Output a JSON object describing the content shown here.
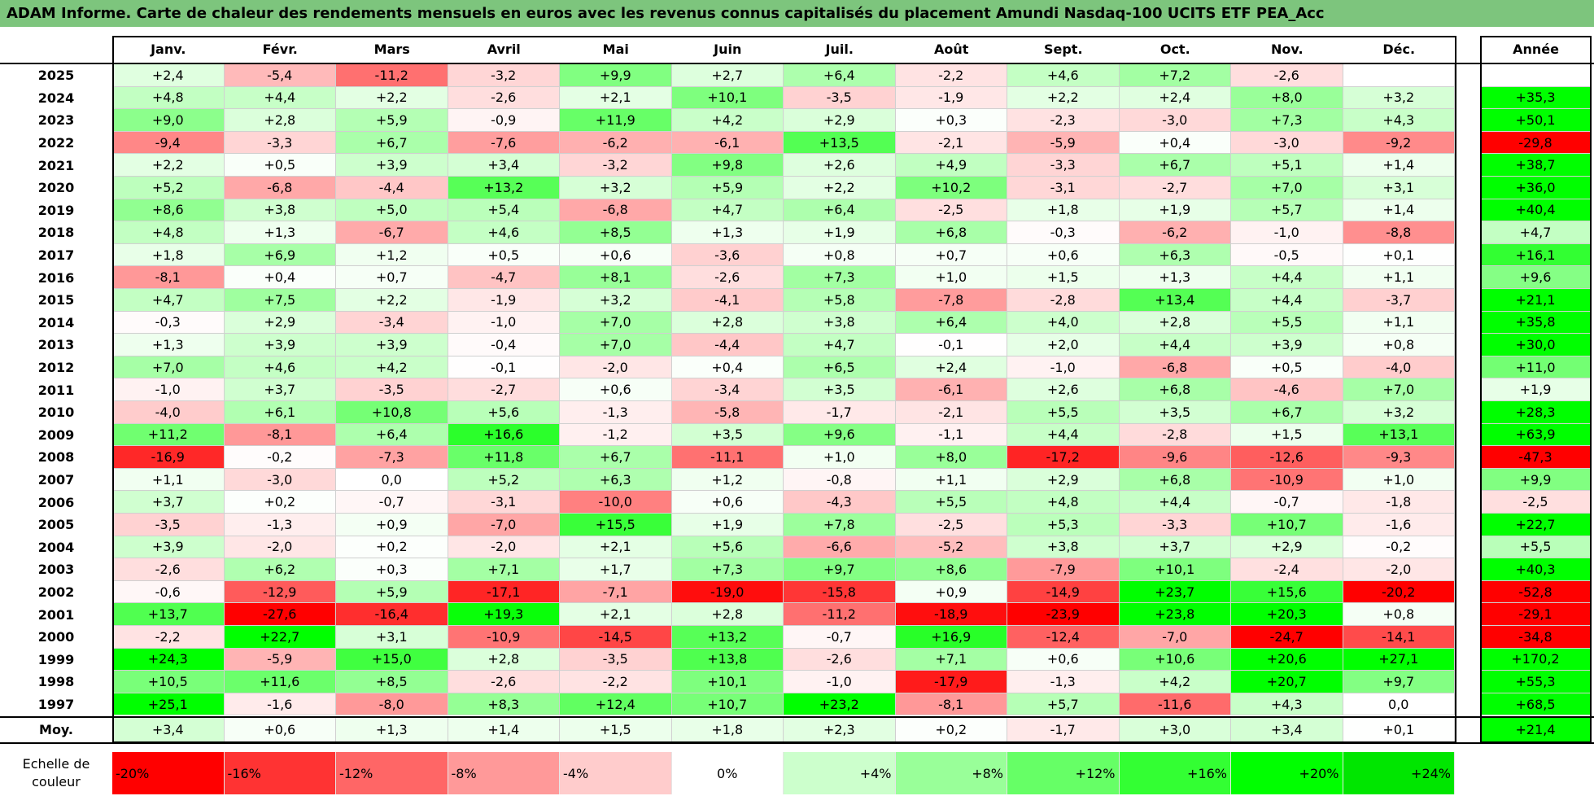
{
  "title": "ADAM Informe. Carte de chaleur des rendements mensuels en euros avec les revenus connus capitalisés du placement Amundi Nasdaq-100 UCITS ETF PEA_Acc",
  "chart_data": {
    "type": "heatmap",
    "columns": [
      "Janv.",
      "Févr.",
      "Mars",
      "Avril",
      "Mai",
      "Juin",
      "Juil.",
      "Août",
      "Sept.",
      "Oct.",
      "Nov.",
      "Déc."
    ],
    "annual_header": "Année",
    "rows": [
      {
        "year": "2025",
        "values": [
          "+2,4",
          "-5,4",
          "-11,2",
          "-3,2",
          "+9,9",
          "+2,7",
          "+6,4",
          "-2,2",
          "+4,6",
          "+7,2",
          "-2,6",
          ""
        ],
        "annual": ""
      },
      {
        "year": "2024",
        "values": [
          "+4,8",
          "+4,4",
          "+2,2",
          "-2,6",
          "+2,1",
          "+10,1",
          "-3,5",
          "-1,9",
          "+2,2",
          "+2,4",
          "+8,0",
          "+3,2"
        ],
        "annual": "+35,3"
      },
      {
        "year": "2023",
        "values": [
          "+9,0",
          "+2,8",
          "+5,9",
          "-0,9",
          "+11,9",
          "+4,2",
          "+2,9",
          "+0,3",
          "-2,3",
          "-3,0",
          "+7,3",
          "+4,3"
        ],
        "annual": "+50,1"
      },
      {
        "year": "2022",
        "values": [
          "-9,4",
          "-3,3",
          "+6,7",
          "-7,6",
          "-6,2",
          "-6,1",
          "+13,5",
          "-2,1",
          "-5,9",
          "+0,4",
          "-3,0",
          "-9,2"
        ],
        "annual": "-29,8"
      },
      {
        "year": "2021",
        "values": [
          "+2,2",
          "+0,5",
          "+3,9",
          "+3,4",
          "-3,2",
          "+9,8",
          "+2,6",
          "+4,9",
          "-3,3",
          "+6,7",
          "+5,1",
          "+1,4"
        ],
        "annual": "+38,7"
      },
      {
        "year": "2020",
        "values": [
          "+5,2",
          "-6,8",
          "-4,4",
          "+13,2",
          "+3,2",
          "+5,9",
          "+2,2",
          "+10,2",
          "-3,1",
          "-2,7",
          "+7,0",
          "+3,1"
        ],
        "annual": "+36,0"
      },
      {
        "year": "2019",
        "values": [
          "+8,6",
          "+3,8",
          "+5,0",
          "+5,4",
          "-6,8",
          "+4,7",
          "+6,4",
          "-2,5",
          "+1,8",
          "+1,9",
          "+5,7",
          "+1,4"
        ],
        "annual": "+40,4"
      },
      {
        "year": "2018",
        "values": [
          "+4,8",
          "+1,3",
          "-6,7",
          "+4,6",
          "+8,5",
          "+1,3",
          "+1,9",
          "+6,8",
          "-0,3",
          "-6,2",
          "-1,0",
          "-8,8"
        ],
        "annual": "+4,7"
      },
      {
        "year": "2017",
        "values": [
          "+1,8",
          "+6,9",
          "+1,2",
          "+0,5",
          "+0,6",
          "-3,6",
          "+0,8",
          "+0,7",
          "+0,6",
          "+6,3",
          "-0,5",
          "+0,1"
        ],
        "annual": "+16,1"
      },
      {
        "year": "2016",
        "values": [
          "-8,1",
          "+0,4",
          "+0,7",
          "-4,7",
          "+8,1",
          "-2,6",
          "+7,3",
          "+1,0",
          "+1,5",
          "+1,3",
          "+4,4",
          "+1,1"
        ],
        "annual": "+9,6"
      },
      {
        "year": "2015",
        "values": [
          "+4,7",
          "+7,5",
          "+2,2",
          "-1,9",
          "+3,2",
          "-4,1",
          "+5,8",
          "-7,8",
          "-2,8",
          "+13,4",
          "+4,4",
          "-3,7"
        ],
        "annual": "+21,1"
      },
      {
        "year": "2014",
        "values": [
          "-0,3",
          "+2,9",
          "-3,4",
          "-1,0",
          "+7,0",
          "+2,8",
          "+3,8",
          "+6,4",
          "+4,0",
          "+2,8",
          "+5,5",
          "+1,1"
        ],
        "annual": "+35,8"
      },
      {
        "year": "2013",
        "values": [
          "+1,3",
          "+3,9",
          "+3,9",
          "-0,4",
          "+7,0",
          "-4,4",
          "+4,7",
          "-0,1",
          "+2,0",
          "+4,4",
          "+3,9",
          "+0,8"
        ],
        "annual": "+30,0"
      },
      {
        "year": "2012",
        "values": [
          "+7,0",
          "+4,6",
          "+4,2",
          "-0,1",
          "-2,0",
          "+0,4",
          "+6,5",
          "+2,4",
          "-1,0",
          "-6,8",
          "+0,5",
          "-4,0"
        ],
        "annual": "+11,0"
      },
      {
        "year": "2011",
        "values": [
          "-1,0",
          "+3,7",
          "-3,5",
          "-2,7",
          "+0,6",
          "-3,4",
          "+3,5",
          "-6,1",
          "+2,6",
          "+6,8",
          "-4,6",
          "+7,0"
        ],
        "annual": "+1,9"
      },
      {
        "year": "2010",
        "values": [
          "-4,0",
          "+6,1",
          "+10,8",
          "+5,6",
          "-1,3",
          "-5,8",
          "-1,7",
          "-2,1",
          "+5,5",
          "+3,5",
          "+6,7",
          "+3,2"
        ],
        "annual": "+28,3"
      },
      {
        "year": "2009",
        "values": [
          "+11,2",
          "-8,1",
          "+6,4",
          "+16,6",
          "-1,2",
          "+3,5",
          "+9,6",
          "-1,1",
          "+4,4",
          "-2,8",
          "+1,5",
          "+13,1"
        ],
        "annual": "+63,9"
      },
      {
        "year": "2008",
        "values": [
          "-16,9",
          "-0,2",
          "-7,3",
          "+11,8",
          "+6,7",
          "-11,1",
          "+1,0",
          "+8,0",
          "-17,2",
          "-9,6",
          "-12,6",
          "-9,3"
        ],
        "annual": "-47,3"
      },
      {
        "year": "2007",
        "values": [
          "+1,1",
          "-3,0",
          "0,0",
          "+5,2",
          "+6,3",
          "+1,2",
          "-0,8",
          "+1,1",
          "+2,9",
          "+6,8",
          "-10,9",
          "+1,0"
        ],
        "annual": "+9,9"
      },
      {
        "year": "2006",
        "values": [
          "+3,7",
          "+0,2",
          "-0,7",
          "-3,1",
          "-10,0",
          "+0,6",
          "-4,3",
          "+5,5",
          "+4,8",
          "+4,4",
          "-0,7",
          "-1,8"
        ],
        "annual": "-2,5"
      },
      {
        "year": "2005",
        "values": [
          "-3,5",
          "-1,3",
          "+0,9",
          "-7,0",
          "+15,5",
          "+1,9",
          "+7,8",
          "-2,5",
          "+5,3",
          "-3,3",
          "+10,7",
          "-1,6"
        ],
        "annual": "+22,7"
      },
      {
        "year": "2004",
        "values": [
          "+3,9",
          "-2,0",
          "+0,2",
          "-2,0",
          "+2,1",
          "+5,6",
          "-6,6",
          "-5,2",
          "+3,8",
          "+3,7",
          "+2,9",
          "-0,2"
        ],
        "annual": "+5,5"
      },
      {
        "year": "2003",
        "values": [
          "-2,6",
          "+6,2",
          "+0,3",
          "+7,1",
          "+1,7",
          "+7,3",
          "+9,7",
          "+8,6",
          "-7,9",
          "+10,1",
          "-2,4",
          "-2,0"
        ],
        "annual": "+40,3"
      },
      {
        "year": "2002",
        "values": [
          "-0,6",
          "-12,9",
          "+5,9",
          "-17,1",
          "-7,1",
          "-19,0",
          "-15,8",
          "+0,9",
          "-14,9",
          "+23,7",
          "+15,6",
          "-20,2"
        ],
        "annual": "-52,8"
      },
      {
        "year": "2001",
        "values": [
          "+13,7",
          "-27,6",
          "-16,4",
          "+19,3",
          "+2,1",
          "+2,8",
          "-11,2",
          "-18,9",
          "-23,9",
          "+23,8",
          "+20,3",
          "+0,8"
        ],
        "annual": "-29,1"
      },
      {
        "year": "2000",
        "values": [
          "-2,2",
          "+22,7",
          "+3,1",
          "-10,9",
          "-14,5",
          "+13,2",
          "-0,7",
          "+16,9",
          "-12,4",
          "-7,0",
          "-24,7",
          "-14,1"
        ],
        "annual": "-34,8"
      },
      {
        "year": "1999",
        "values": [
          "+24,3",
          "-5,9",
          "+15,0",
          "+2,8",
          "-3,5",
          "+13,8",
          "-2,6",
          "+7,1",
          "+0,6",
          "+10,6",
          "+20,6",
          "+27,1"
        ],
        "annual": "+170,2"
      },
      {
        "year": "1998",
        "values": [
          "+10,5",
          "+11,6",
          "+8,5",
          "-2,6",
          "-2,2",
          "+10,1",
          "-1,0",
          "-17,9",
          "-1,3",
          "+4,2",
          "+20,7",
          "+9,7"
        ],
        "annual": "+55,3"
      },
      {
        "year": "1997",
        "values": [
          "+25,1",
          "-1,6",
          "-8,0",
          "+8,3",
          "+12,4",
          "+10,7",
          "+23,2",
          "-8,1",
          "+5,7",
          "-11,6",
          "+4,3",
          "0,0"
        ],
        "annual": "+68,5"
      }
    ],
    "average": {
      "label": "Moy.",
      "values": [
        "+3,4",
        "+0,6",
        "+1,3",
        "+1,4",
        "+1,5",
        "+1,8",
        "+2,3",
        "+0,2",
        "-1,7",
        "+3,0",
        "+3,4",
        "+0,1"
      ],
      "annual": "+21,4"
    },
    "color_scale": {
      "label": "Echelle de couleur",
      "stops": [
        {
          "label": "-20%",
          "value": -20,
          "color": "#ff0000"
        },
        {
          "label": "-16%",
          "value": -16,
          "color": "#ff3333"
        },
        {
          "label": "-12%",
          "value": -12,
          "color": "#ff6666"
        },
        {
          "label": "-8%",
          "value": -8,
          "color": "#ff9999"
        },
        {
          "label": "-4%",
          "value": -4,
          "color": "#ffcccc"
        },
        {
          "label": "0%",
          "value": 0,
          "color": "#ffffff"
        },
        {
          "label": "+4%",
          "value": 4,
          "color": "#ccffcc"
        },
        {
          "label": "+8%",
          "value": 8,
          "color": "#99ff99"
        },
        {
          "label": "+12%",
          "value": 12,
          "color": "#66ff66"
        },
        {
          "label": "+16%",
          "value": 16,
          "color": "#33ff33"
        },
        {
          "label": "+20%",
          "value": 20,
          "color": "#00ff00"
        },
        {
          "label": "+24%",
          "value": 24,
          "color": "#00e600"
        }
      ]
    }
  },
  "colors": {
    "title_bg": "#7dc57d",
    "positive_max": "#00e600",
    "negative_max": "#ff0000",
    "neutral": "#ffffff"
  }
}
